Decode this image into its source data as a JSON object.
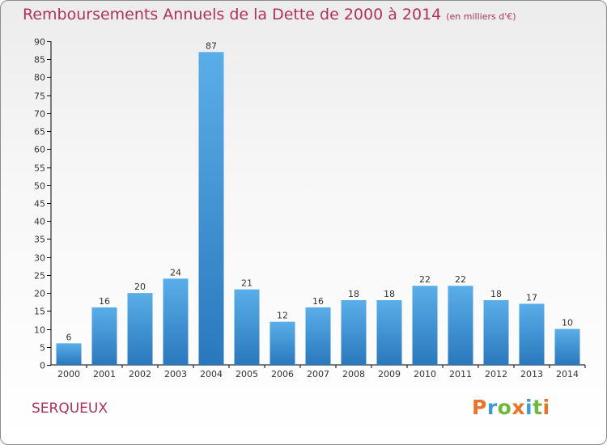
{
  "header": {
    "title": "Remboursements Annuels de la Dette de 2000 à 2014",
    "unit": "(en milliers d'€)"
  },
  "footer": {
    "commune": "SERQUEUX",
    "logo_text": "Proxiti"
  },
  "colors": {
    "title": "#b0305e",
    "bar_light": "#5aaee8",
    "bar_dark": "#2a78bd",
    "axis": "#000000",
    "logo_letters": [
      "#e8742a",
      "#3f9ad6",
      "#6fb83b",
      "#e8742a",
      "#3f9ad6",
      "#6fb83b",
      "#e8742a"
    ]
  },
  "chart_data": {
    "type": "bar",
    "title": "Remboursements Annuels de la Dette de 2000 à 2014",
    "subtitle": "(en milliers d'€)",
    "categories": [
      "2000",
      "2001",
      "2002",
      "2003",
      "2004",
      "2005",
      "2006",
      "2007",
      "2008",
      "2009",
      "2010",
      "2011",
      "2012",
      "2013",
      "2014"
    ],
    "values": [
      6,
      16,
      20,
      24,
      87,
      21,
      12,
      16,
      18,
      18,
      22,
      22,
      18,
      17,
      10
    ],
    "ylim": [
      0,
      90
    ],
    "yticks": [
      0,
      5,
      10,
      15,
      20,
      25,
      30,
      35,
      40,
      45,
      50,
      55,
      60,
      65,
      70,
      75,
      80,
      85,
      90
    ],
    "grid": false,
    "data_labels": true
  }
}
